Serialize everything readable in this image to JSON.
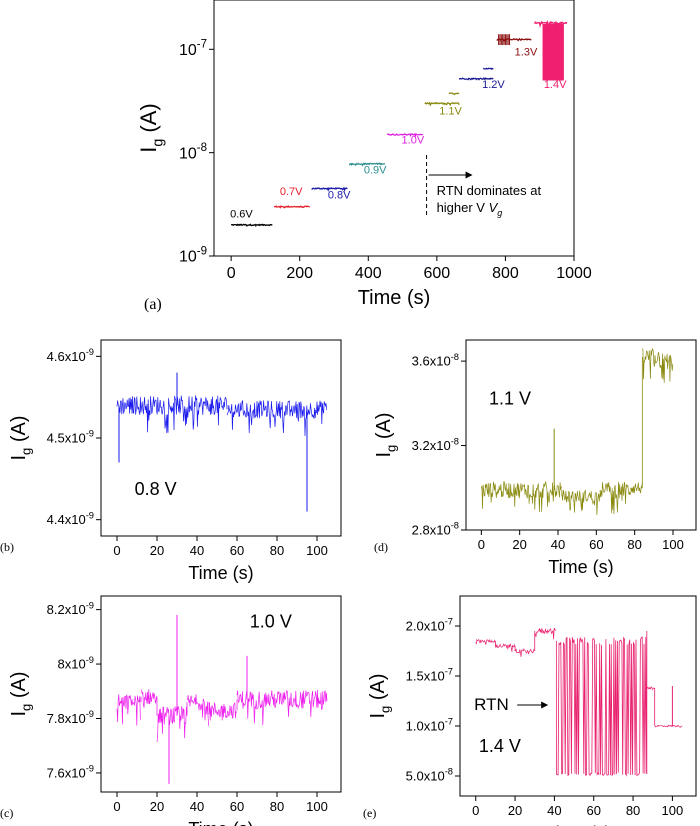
{
  "chart_data": [
    {
      "id": "a",
      "panel_label": "(a)",
      "type": "line",
      "ylabel_main": "I",
      "ylabel_sub": "g",
      "ylabel_unit": "(A)",
      "xlabel": "Time (s)",
      "xlim": [
        -50,
        1000
      ],
      "ylog": true,
      "ylim": [
        1e-09,
        3e-07
      ],
      "xticks": [
        "0",
        "200",
        "400",
        "600",
        "800",
        "1000"
      ],
      "xtick_values": [
        0,
        200,
        400,
        600,
        800,
        1000
      ],
      "yticks": [
        {
          "base": "10",
          "exp": "-9",
          "value": 1e-09
        },
        {
          "base": "10",
          "exp": "-8",
          "value": 1e-08
        },
        {
          "base": "10",
          "exp": "-7",
          "value": 1e-07
        }
      ],
      "annotation": {
        "line1": "RTN dominates at",
        "line2": "higher V",
        "line2_sub": "g",
        "x": 570
      },
      "series": [
        {
          "label": "0.6V",
          "color": "#000000",
          "x0": 0,
          "x1": 120,
          "level": 2e-09,
          "label_x": 30,
          "label_y": 2.35e-09,
          "label_color": "#000000"
        },
        {
          "label": "0.7V",
          "color": "#e8202a",
          "x0": 125,
          "x1": 230,
          "level": 3e-09,
          "label_x": 175,
          "label_y": 3.9e-09,
          "label_color": "#e8202a"
        },
        {
          "label": "0.8V",
          "color": "#1a1aa8",
          "x0": 235,
          "x1": 340,
          "level": 4.5e-09,
          "label_x": 315,
          "label_y": 3.6e-09,
          "label_color": "#1a1aa8"
        },
        {
          "label": "0.9V",
          "color": "#2e8f8f",
          "x0": 345,
          "x1": 450,
          "level": 7.8e-09,
          "label_x": 420,
          "label_y": 6.3e-09,
          "label_color": "#2e8f8f"
        },
        {
          "label": "1.0V",
          "color": "#e020e0",
          "x0": 455,
          "x1": 560,
          "level": 1.5e-08,
          "label_x": 530,
          "label_y": 1.22e-08,
          "label_color": "#e020e0"
        },
        {
          "label": "1.1V",
          "color": "#8a8a10",
          "x0": 565,
          "x1": 665,
          "level": 3e-08,
          "label_x": 640,
          "label_y": 2.35e-08,
          "label_color": "#8a8a10"
        },
        {
          "label": "1.2V",
          "color": "#1a1a90",
          "x0": 665,
          "x1": 765,
          "level": 5.2e-08,
          "label_x": 765,
          "label_y": 4.2e-08,
          "label_color": "#1a1a90"
        },
        {
          "label": "1.3V",
          "color": "#8b1010",
          "x0": 775,
          "x1": 875,
          "level": 1.25e-07,
          "label_x": 860,
          "label_y": 8.7e-08,
          "label_color": "#8b1010"
        },
        {
          "label": "1.4V",
          "color": "#f02070",
          "x0": 885,
          "x1": 980,
          "level": 1.8e-07,
          "label_x": 945,
          "label_y": 4.2e-08,
          "label_color": "#f02070"
        }
      ]
    },
    {
      "id": "b",
      "panel_label": "(b)",
      "type": "line",
      "label": "0.8 V",
      "ylabel_main": "I",
      "ylabel_sub": "g",
      "ylabel_unit": "(A)",
      "xlabel": "Time (s)",
      "color": "#1a1aee",
      "xlim": [
        -8,
        112
      ],
      "ylim": [
        4.38e-09,
        4.62e-09
      ],
      "xticks": [
        "0",
        "20",
        "40",
        "60",
        "80",
        "100"
      ],
      "xtick_values": [
        0,
        20,
        40,
        60,
        80,
        100
      ],
      "yticks": [
        {
          "mant": "4.4x10",
          "exp": "-9",
          "value": 4.4e-09
        },
        {
          "mant": "4.5x10",
          "exp": "-9",
          "value": 4.5e-09
        },
        {
          "mant": "4.6x10",
          "exp": "-9",
          "value": 4.6e-09
        }
      ],
      "segments": [
        {
          "x0": 0,
          "x1": 55,
          "level": 4.54e-09,
          "noise": 1.2e-11
        },
        {
          "x0": 55,
          "x1": 105,
          "level": 4.535e-09,
          "noise": 1.1e-11
        }
      ],
      "spikes": [
        {
          "x": 1,
          "y": 4.47e-09
        },
        {
          "x": 30,
          "y": 4.58e-09
        },
        {
          "x": 95,
          "y": 4.41e-09
        }
      ]
    },
    {
      "id": "d",
      "panel_label": "(d)",
      "type": "line",
      "label": "1.1 V",
      "ylabel_main": "I",
      "ylabel_sub": "g",
      "ylabel_unit": "(A)",
      "xlabel": "Time (s)",
      "color": "#8a8a10",
      "xlim": [
        -8,
        112
      ],
      "ylim": [
        2.8e-08,
        3.7e-08
      ],
      "xticks": [
        "0",
        "20",
        "40",
        "60",
        "80",
        "100"
      ],
      "xtick_values": [
        0,
        20,
        40,
        60,
        80,
        100
      ],
      "yticks": [
        {
          "mant": "2.8x10",
          "exp": "-8",
          "value": 2.8e-08
        },
        {
          "mant": "3.2x10",
          "exp": "-8",
          "value": 3.2e-08
        },
        {
          "mant": "3.6x10",
          "exp": "-8",
          "value": 3.6e-08
        }
      ],
      "segments": [
        {
          "x0": 0,
          "x1": 42,
          "level": 2.99e-08,
          "noise": 4e-10
        },
        {
          "x0": 42,
          "x1": 62,
          "level": 2.96e-08,
          "noise": 3e-10
        },
        {
          "x0": 62,
          "x1": 78,
          "level": 2.99e-08,
          "noise": 4e-10
        },
        {
          "x0": 78,
          "x1": 84,
          "level": 3e-08,
          "noise": 3e-10
        },
        {
          "x0": 84,
          "x1": 93,
          "level": 3.62e-08,
          "noise": 4e-10
        },
        {
          "x0": 93,
          "x1": 100,
          "level": 3.6e-08,
          "noise": 4e-10
        }
      ],
      "spikes": [
        {
          "x": 38,
          "y": 3.28e-08
        }
      ]
    },
    {
      "id": "c",
      "panel_label": "(c)",
      "type": "line",
      "label": "1.0 V",
      "ylabel_main": "I",
      "ylabel_sub": "g",
      "ylabel_unit": "(A)",
      "xlabel": "Time (s)",
      "color": "#ee20ee",
      "xlim": [
        -8,
        112
      ],
      "ylim": [
        7.53e-09,
        8.25e-09
      ],
      "xticks": [
        "0",
        "20",
        "40",
        "60",
        "80",
        "100"
      ],
      "xtick_values": [
        0,
        20,
        40,
        60,
        80,
        100
      ],
      "yticks": [
        {
          "mant": "7.6x10",
          "exp": "-9",
          "value": 7.6e-09
        },
        {
          "mant": "7.8x10",
          "exp": "-9",
          "value": 7.8e-09
        },
        {
          "mant": "8x10",
          "exp": "-9",
          "value": 8e-09
        },
        {
          "mant": "8.2x10",
          "exp": "-9",
          "value": 8.2e-09
        }
      ],
      "segments": [
        {
          "x0": 0,
          "x1": 12,
          "level": 7.86e-09,
          "noise": 3e-11
        },
        {
          "x0": 12,
          "x1": 20,
          "level": 7.88e-09,
          "noise": 3e-11
        },
        {
          "x0": 20,
          "x1": 35,
          "level": 7.81e-09,
          "noise": 3.5e-11
        },
        {
          "x0": 35,
          "x1": 46,
          "level": 7.86e-09,
          "noise": 3e-11
        },
        {
          "x0": 46,
          "x1": 60,
          "level": 7.83e-09,
          "noise": 3e-11
        },
        {
          "x0": 60,
          "x1": 105,
          "level": 7.87e-09,
          "noise": 3.5e-11
        }
      ],
      "spikes": [
        {
          "x": 30,
          "y": 8.18e-09
        },
        {
          "x": 26,
          "y": 7.56e-09
        },
        {
          "x": 65,
          "y": 8.03e-09
        }
      ]
    },
    {
      "id": "e",
      "panel_label": "(e)",
      "type": "line",
      "label": "1.4 V",
      "annotation": "RTN",
      "ylabel_main": "I",
      "ylabel_sub": "g",
      "ylabel_unit": "(A)",
      "xlabel": "Time (s)",
      "color": "#e8206e",
      "xlim": [
        -8,
        112
      ],
      "ylim": [
        3e-08,
        2.3e-07
      ],
      "xticks": [
        "0",
        "20",
        "40",
        "60",
        "80",
        "100"
      ],
      "xtick_values": [
        0,
        20,
        40,
        60,
        80,
        100
      ],
      "yticks": [
        {
          "mant": "5.0x10",
          "exp": "-8",
          "value": 5e-08
        },
        {
          "mant": "1.0x10",
          "exp": "-7",
          "value": 1e-07
        },
        {
          "mant": "1.5x10",
          "exp": "-7",
          "value": 1.5e-07
        },
        {
          "mant": "2.0x10",
          "exp": "-7",
          "value": 2e-07
        }
      ],
      "segments": [
        {
          "x0": 0,
          "x1": 10,
          "level": 1.85e-07,
          "noise": 1.5e-09
        },
        {
          "x0": 10,
          "x1": 20,
          "level": 1.8e-07,
          "noise": 2e-09
        },
        {
          "x0": 20,
          "x1": 30,
          "level": 1.75e-07,
          "noise": 2e-09
        },
        {
          "x0": 30,
          "x1": 41,
          "level": 1.95e-07,
          "noise": 3e-09
        },
        {
          "x0": 87,
          "x1": 91,
          "level": 1.38e-07,
          "noise": 1e-09
        },
        {
          "x0": 91,
          "x1": 105,
          "level": 1e-07,
          "noise": 8e-10
        }
      ],
      "rtn": {
        "x0": 41,
        "x1": 87,
        "low": 5.2e-08,
        "high": 1.85e-07
      },
      "spikes": [
        {
          "x": 100,
          "y": 1.4e-07
        }
      ]
    }
  ]
}
